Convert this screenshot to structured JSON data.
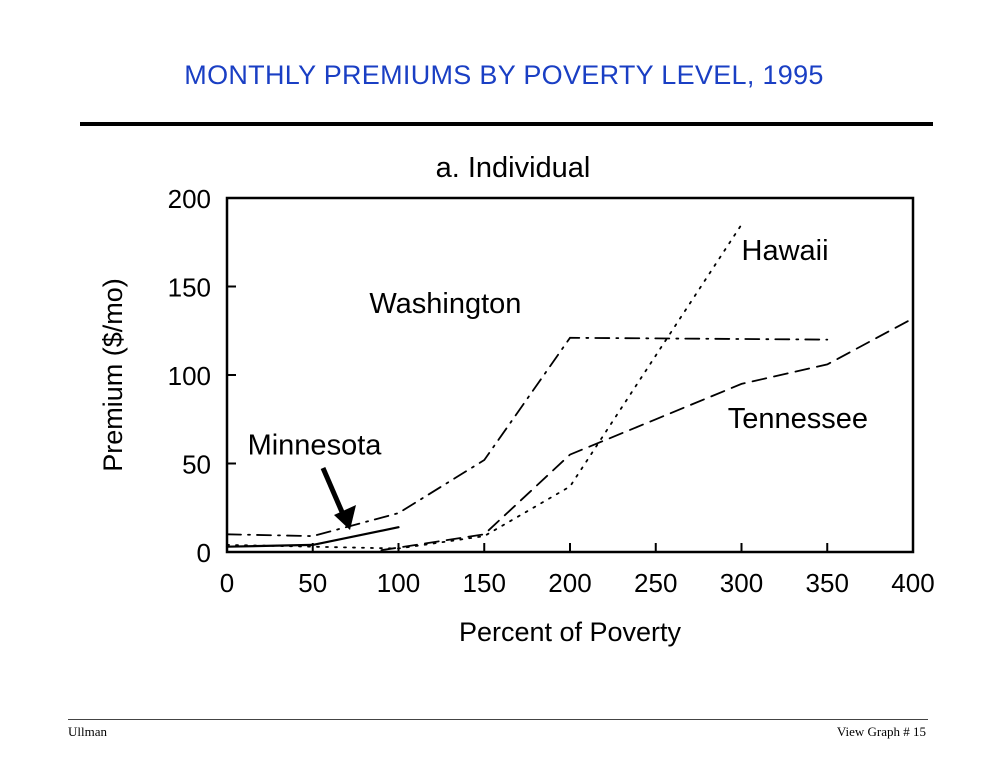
{
  "slide": {
    "title": "MONTHLY PREMIUMS BY POVERTY LEVEL, 1995"
  },
  "footer": {
    "author": "Ullman",
    "page": "View Graph  # 15"
  },
  "chart_data": {
    "type": "line",
    "title": "a.  Individual",
    "xlabel": "Percent of Poverty",
    "ylabel": "Premium ($/mo)",
    "xlim": [
      0,
      400
    ],
    "ylim": [
      0,
      200
    ],
    "xticks": [
      0,
      50,
      100,
      150,
      200,
      250,
      300,
      350,
      400
    ],
    "yticks": [
      0,
      50,
      100,
      150,
      200
    ],
    "grid": false,
    "legend": "none",
    "series": [
      {
        "name": "Washington",
        "style": "dash-dot",
        "x": [
          0,
          50,
          100,
          150,
          200,
          350
        ],
        "y": [
          10,
          9,
          22,
          52,
          121,
          120
        ]
      },
      {
        "name": "Hawaii",
        "style": "dotted",
        "x": [
          0,
          50,
          100,
          150,
          200,
          300
        ],
        "y": [
          4,
          3,
          2,
          9,
          37,
          185
        ]
      },
      {
        "name": "Tennessee",
        "style": "dashed",
        "x": [
          90,
          150,
          200,
          250,
          300,
          350,
          400
        ],
        "y": [
          1,
          10,
          55,
          75,
          95,
          106,
          132
        ]
      },
      {
        "name": "Minnesota",
        "style": "solid",
        "x": [
          0,
          50,
          100
        ],
        "y": [
          3,
          4,
          14
        ]
      }
    ],
    "annotations": [
      {
        "text": "Hawaii",
        "x": 300,
        "y": 165
      },
      {
        "text": "Washington",
        "x": 83,
        "y": 135
      },
      {
        "text": "Tennessee",
        "x": 292,
        "y": 70
      },
      {
        "text": "Minnesota",
        "x": 12,
        "y": 55
      }
    ]
  }
}
